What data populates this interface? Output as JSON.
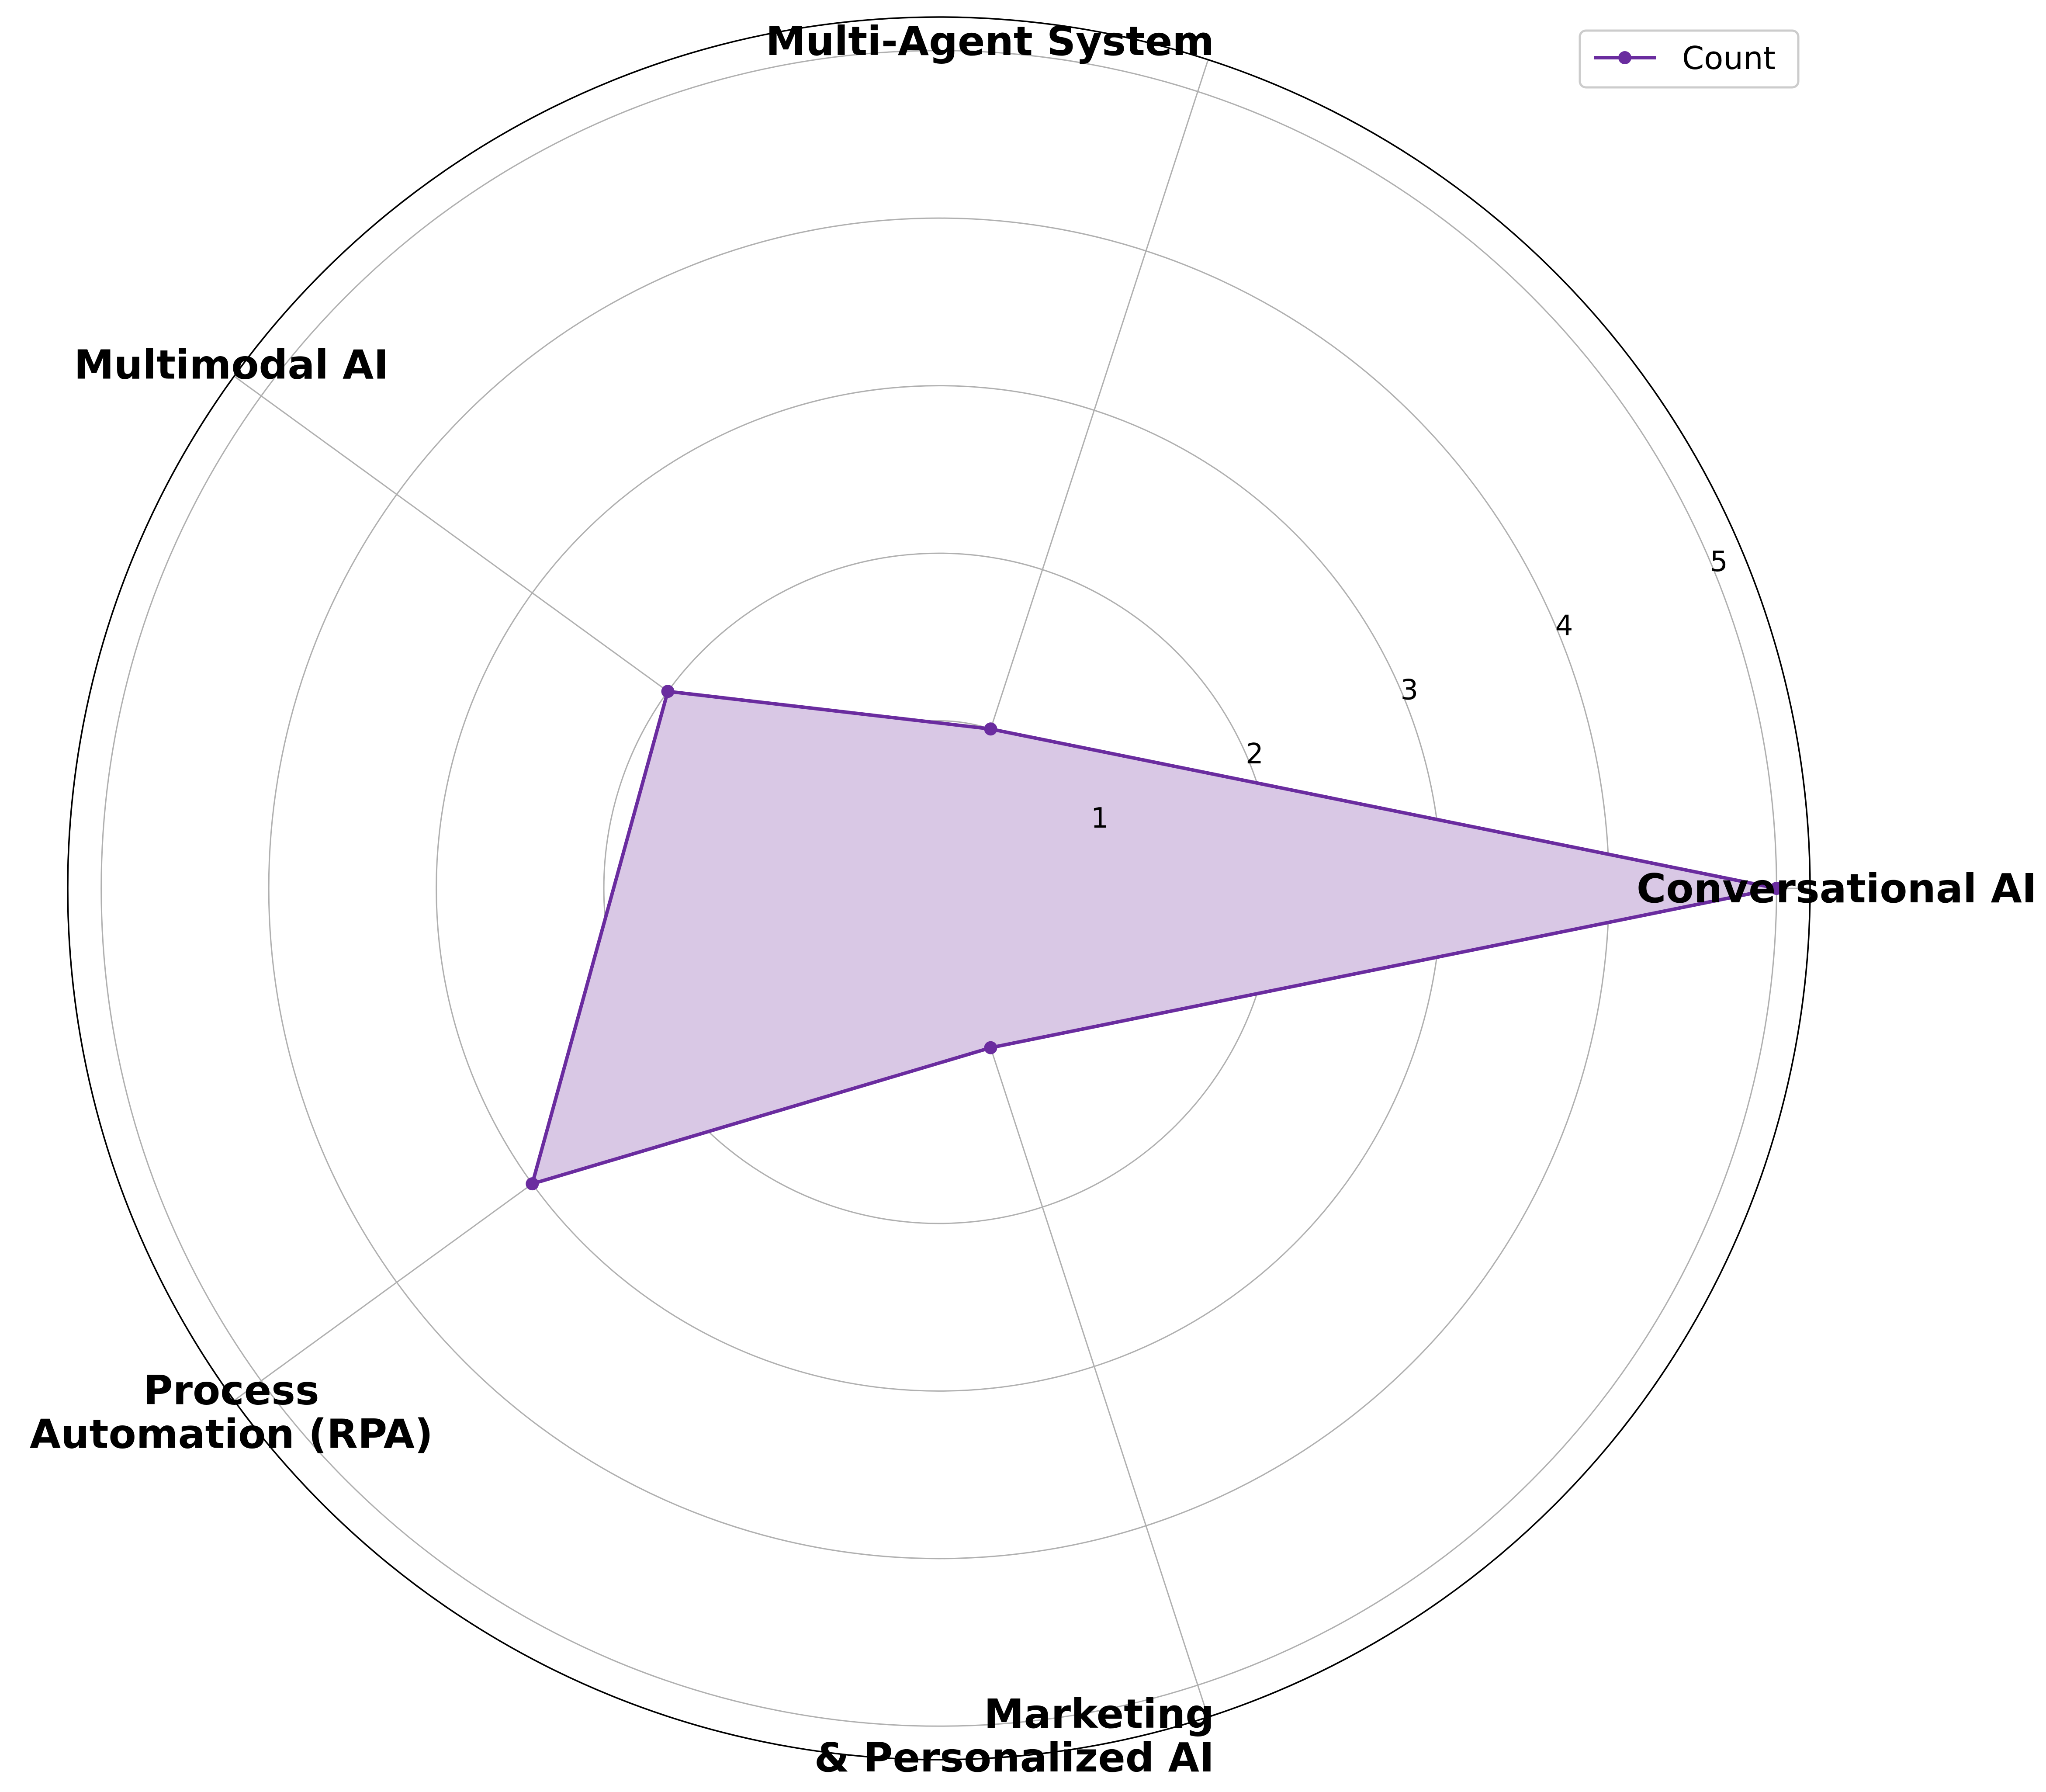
{
  "chart_data": {
    "type": "radar",
    "categories": [
      "Conversational AI",
      "Multi-Agent System",
      "Multimodal AI",
      "Process\nAutomation (RPA)",
      "Marketing\n& Personalized AI"
    ],
    "series": [
      {
        "name": "Count",
        "values": [
          5,
          1,
          2,
          3,
          1
        ],
        "color": "#6a2c9f",
        "fill": "#d9c8e5"
      }
    ],
    "r_ticks": [
      1,
      2,
      3,
      4,
      5
    ],
    "rlim": [
      0,
      5.2
    ],
    "grid": true,
    "legend": {
      "position": "top-right",
      "labels": [
        "Count"
      ]
    },
    "title": "",
    "colors": {
      "grid": "#b0b0b0",
      "frame": "#000000",
      "text": "#000000"
    }
  }
}
